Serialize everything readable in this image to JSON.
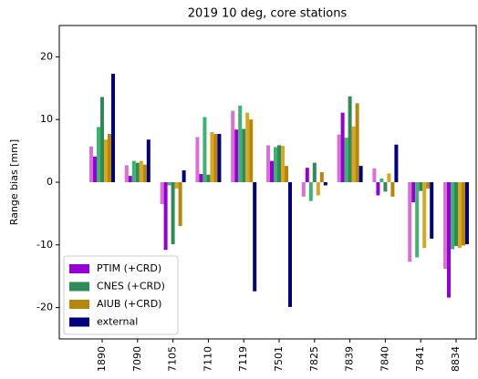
{
  "chart_data": {
    "type": "bar",
    "title": "2019 10 deg, core stations",
    "y_label": "Range bias [mm]",
    "categories": [
      "1890",
      "7090",
      "7105",
      "7110",
      "7119",
      "7501",
      "7825",
      "7839",
      "7840",
      "7841",
      "8834"
    ],
    "series": [
      {
        "color": "#da70d6",
        "values": [
          5.7,
          2.7,
          -3.5,
          7.2,
          11.4,
          5.9,
          -2.3,
          7.6,
          2.2,
          -12.7,
          -13.8
        ]
      },
      {
        "name": "PTIM (+CRD)",
        "color": "#9400d3",
        "values": [
          4.1,
          1.0,
          -10.8,
          1.3,
          8.4,
          3.4,
          2.3,
          11.1,
          -2.1,
          -3.2,
          -18.4
        ]
      },
      {
        "color": "#3cb371",
        "values": [
          8.8,
          3.4,
          -0.5,
          10.4,
          12.2,
          5.6,
          -3.0,
          7.1,
          0.6,
          -12.0,
          -10.7
        ]
      },
      {
        "name": "CNES (+CRD)",
        "color": "#2e8b57",
        "values": [
          13.6,
          3.1,
          -9.9,
          1.2,
          8.5,
          5.9,
          3.1,
          13.7,
          -1.5,
          -1.4,
          -10.2
        ]
      },
      {
        "color": "#daa520",
        "values": [
          6.8,
          3.4,
          -1.0,
          8.0,
          11.1,
          5.8,
          -2.1,
          8.9,
          1.4,
          -10.5,
          -10.5
        ]
      },
      {
        "name": "AIUB (+CRD)",
        "color": "#b8860b",
        "values": [
          7.7,
          2.8,
          -7.0,
          7.7,
          10.0,
          2.6,
          1.6,
          12.6,
          -2.3,
          -1.0,
          -10.1
        ]
      },
      {
        "name": "external",
        "color": "#000080",
        "values": [
          17.3,
          6.8,
          1.9,
          7.7,
          -17.4,
          -19.9,
          -0.5,
          2.6,
          6.0,
          -9.0,
          -9.9
        ]
      }
    ],
    "ylim": [
      -25,
      25
    ],
    "yticks": [
      -20,
      -10,
      0,
      10,
      20
    ],
    "legend": "lower left"
  }
}
